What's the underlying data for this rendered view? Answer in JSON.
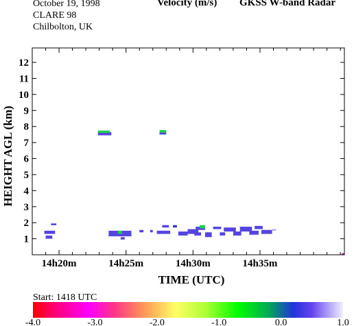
{
  "header": {
    "date": "October  19, 1998",
    "campaign": "CLARE 98",
    "location": "Chilbolton, UK",
    "quantity": "Velocity (m/s)",
    "instrument": "GKSS  W-band Radar"
  },
  "start_label": "Start: 1418 UTC",
  "chart_data": {
    "type": "heatmap",
    "xlabel": "TIME (UTC)",
    "ylabel": "HEIGHT AGL (km)",
    "x_unit": "minutes since 14:18 UTC",
    "xlim": [
      0,
      23.3
    ],
    "ylim": [
      0,
      12.9
    ],
    "x_ticks": [
      2,
      7,
      12,
      17
    ],
    "x_tick_labels": [
      "14h20m",
      "14h25m",
      "14h30m",
      "14h35m"
    ],
    "y_ticks": [
      1,
      2,
      3,
      4,
      5,
      6,
      7,
      8,
      9,
      10,
      11,
      12
    ],
    "y_tick_labels": [
      "1",
      "2",
      "3",
      "4",
      "5",
      "6",
      "7",
      "8",
      "9",
      "10",
      "11",
      "12"
    ],
    "colorbar": {
      "min": -4.0,
      "max": 1.0,
      "tick_values": [
        -4.0,
        -3.0,
        -2.0,
        -1.0,
        0.0,
        1.0
      ],
      "tick_labels": [
        "-4.0",
        "-3.0",
        "-2.0",
        "-1.0",
        "0.0",
        "1.0"
      ],
      "colors": [
        "#ff0000",
        "#ff00ff",
        "#ffff00",
        "#00ff00",
        "#4a3ae6",
        "#e8e8ff"
      ]
    },
    "echoes": [
      {
        "t0": 0.9,
        "t1": 1.7,
        "h0": 1.3,
        "h1": 1.5,
        "v": 0.3
      },
      {
        "t0": 1.4,
        "t1": 1.8,
        "h0": 1.85,
        "h1": 1.95,
        "v": 0.2
      },
      {
        "t0": 1.0,
        "t1": 1.5,
        "h0": 1.0,
        "h1": 1.2,
        "v": 0.3
      },
      {
        "t0": 4.9,
        "t1": 5.9,
        "h0": 7.45,
        "h1": 7.65,
        "v": 0.35
      },
      {
        "t0": 4.9,
        "t1": 5.8,
        "h0": 7.6,
        "h1": 7.75,
        "v": -0.9
      },
      {
        "t0": 9.5,
        "t1": 10.0,
        "h0": 7.5,
        "h1": 7.65,
        "v": 0.35
      },
      {
        "t0": 9.5,
        "t1": 10.0,
        "h0": 7.62,
        "h1": 7.78,
        "v": -0.9
      },
      {
        "t0": 5.7,
        "t1": 7.4,
        "h0": 1.15,
        "h1": 1.5,
        "v": 0.3
      },
      {
        "t0": 6.4,
        "t1": 6.7,
        "h0": 1.3,
        "h1": 1.5,
        "v": -0.9
      },
      {
        "t0": 6.6,
        "t1": 6.9,
        "h0": 0.95,
        "h1": 1.1,
        "v": 0.3
      },
      {
        "t0": 8.0,
        "t1": 8.3,
        "h0": 1.4,
        "h1": 1.55,
        "v": 0.4
      },
      {
        "t0": 8.8,
        "t1": 9.0,
        "h0": 1.4,
        "h1": 1.55,
        "v": 0.3
      },
      {
        "t0": 9.3,
        "t1": 10.3,
        "h0": 1.3,
        "h1": 1.5,
        "v": 0.3
      },
      {
        "t0": 9.7,
        "t1": 10.2,
        "h0": 1.7,
        "h1": 1.85,
        "v": 0.35
      },
      {
        "t0": 10.5,
        "t1": 10.8,
        "h0": 1.7,
        "h1": 1.85,
        "v": 0.2
      },
      {
        "t0": 10.9,
        "t1": 11.6,
        "h0": 1.2,
        "h1": 1.45,
        "v": 0.3
      },
      {
        "t0": 11.6,
        "t1": 12.4,
        "h0": 1.3,
        "h1": 1.6,
        "v": 0.3
      },
      {
        "t0": 12.1,
        "t1": 12.6,
        "h0": 1.2,
        "h1": 1.4,
        "v": 0.25
      },
      {
        "t0": 12.2,
        "t1": 12.9,
        "h0": 1.55,
        "h1": 1.75,
        "v": 0.4
      },
      {
        "t0": 12.5,
        "t1": 12.9,
        "h0": 1.65,
        "h1": 1.85,
        "v": -0.9
      },
      {
        "t0": 12.9,
        "t1": 13.4,
        "h0": 1.1,
        "h1": 1.4,
        "v": 0.3
      },
      {
        "t0": 13.5,
        "t1": 14.1,
        "h0": 1.6,
        "h1": 1.75,
        "v": 0.4
      },
      {
        "t0": 14.0,
        "t1": 14.4,
        "h0": 1.2,
        "h1": 1.4,
        "v": 0.3
      },
      {
        "t0": 14.3,
        "t1": 15.2,
        "h0": 1.45,
        "h1": 1.7,
        "v": 0.3
      },
      {
        "t0": 15.0,
        "t1": 15.6,
        "h0": 1.2,
        "h1": 1.45,
        "v": 0.3
      },
      {
        "t0": 15.5,
        "t1": 16.4,
        "h0": 1.45,
        "h1": 1.75,
        "v": 0.25
      },
      {
        "t0": 16.2,
        "t1": 16.9,
        "h0": 1.25,
        "h1": 1.5,
        "v": 0.3
      },
      {
        "t0": 16.6,
        "t1": 17.2,
        "h0": 1.6,
        "h1": 1.8,
        "v": 0.35
      },
      {
        "t0": 17.1,
        "t1": 17.9,
        "h0": 1.3,
        "h1": 1.55,
        "v": 0.3
      },
      {
        "t0": 17.9,
        "t1": 18.2,
        "h0": 1.5,
        "h1": 1.6,
        "v": 0.7
      },
      {
        "t0": 23.1,
        "t1": 23.3,
        "h0": 0.0,
        "h1": 0.1,
        "v": -3.5
      }
    ]
  }
}
